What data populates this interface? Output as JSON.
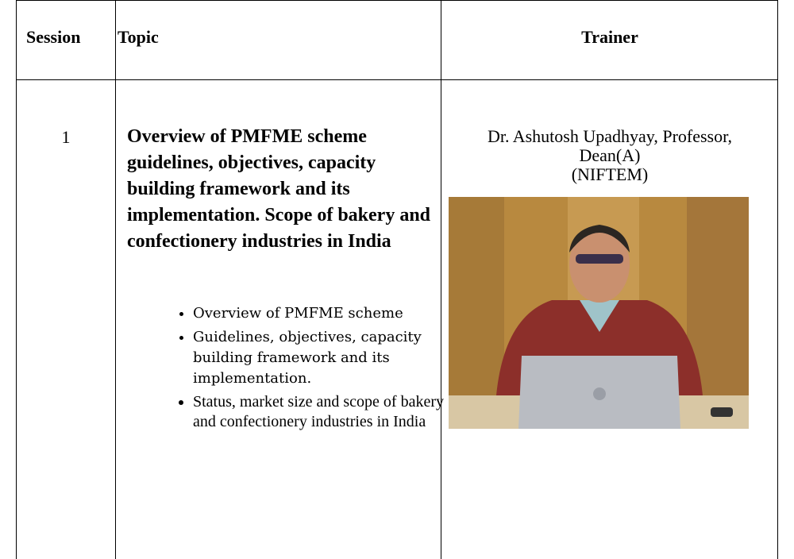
{
  "table": {
    "header": [
      "Session",
      "Topic",
      "Trainer"
    ],
    "rows": [
      {
        "session": "1",
        "topic_title": "Overview of PMFME scheme guidelines, objectives, capacity building framework and its implementation. Scope of bakery and confectionery industries in India",
        "bullets": [
          "Overview of PMFME scheme",
          "Guidelines, objectives, capacity building framework and its implementation.",
          "Status, market size and scope of bakery and confectionery industries in India"
        ],
        "trainer": [
          "Dr. Ashutosh Upadhyay, Professor,",
          "Dean(A)",
          "(NIFTEM)"
        ]
      }
    ]
  }
}
